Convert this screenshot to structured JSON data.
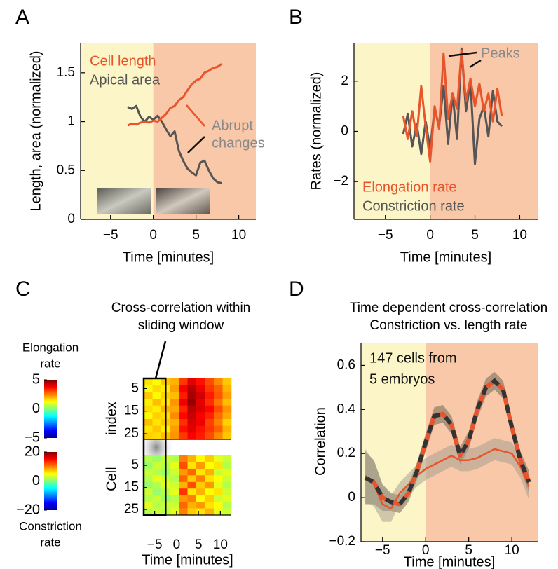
{
  "chart_data": [
    {
      "type": "line",
      "panel": "A",
      "xlabel": "Time [minutes]",
      "ylabel": "Length, area (normalized)",
      "xlim": [
        -8.5,
        12
      ],
      "ylim": [
        0,
        1.8
      ],
      "xticks": [
        {
          "value": -5,
          "label": "−5"
        },
        0,
        5,
        10
      ],
      "yticks": [
        0,
        0.5,
        1,
        1.5
      ],
      "shading": [
        {
          "from": -8.5,
          "to": 0,
          "color": "#fcf5c8"
        },
        {
          "from": 0,
          "to": 12,
          "color": "#f8c8a8"
        }
      ],
      "x": [
        -3,
        -2.5,
        -2,
        -1.5,
        -1,
        -0.5,
        0,
        0.5,
        1,
        1.5,
        2,
        2.5,
        3,
        3.5,
        4,
        4.5,
        5,
        5.5,
        6,
        6.5,
        7,
        7.5,
        8
      ],
      "series": [
        {
          "name": "Cell length",
          "color": "#e8542b",
          "values": [
            0.96,
            0.98,
            0.97,
            0.99,
            1.0,
            0.99,
            1.01,
            1.0,
            1.04,
            1.08,
            1.14,
            1.16,
            1.22,
            1.25,
            1.32,
            1.38,
            1.42,
            1.44,
            1.5,
            1.52,
            1.55,
            1.56,
            1.59
          ]
        },
        {
          "name": "Apical area",
          "color": "#555555",
          "values": [
            1.15,
            1.13,
            1.16,
            1.05,
            1.0,
            1.05,
            1.02,
            1.06,
            1.0,
            0.92,
            0.85,
            0.9,
            0.7,
            0.6,
            0.52,
            0.48,
            0.45,
            0.58,
            0.6,
            0.5,
            0.42,
            0.38,
            0.37
          ]
        }
      ],
      "annotation": [
        "Abrupt",
        "changes"
      ],
      "annotation_color": "#8a8a8a"
    },
    {
      "type": "line",
      "panel": "B",
      "xlabel": "Time [minutes]",
      "ylabel": "Rates (normalized)",
      "xlim": [
        -8.5,
        12
      ],
      "ylim": [
        -3.5,
        3.5
      ],
      "xticks": [
        {
          "value": -5,
          "label": "−5"
        },
        0,
        5,
        10
      ],
      "yticks": [
        {
          "value": -2,
          "label": "−2"
        },
        0,
        2
      ],
      "shading": [
        {
          "from": -8.5,
          "to": 0,
          "color": "#fcf5c8"
        },
        {
          "from": 0,
          "to": 12,
          "color": "#f8c8a8"
        }
      ],
      "x": [
        -3,
        -2.5,
        -2,
        -1.5,
        -1,
        -0.5,
        0,
        0.5,
        1,
        1.5,
        2,
        2.5,
        3,
        3.5,
        4,
        4.5,
        5,
        5.5,
        6,
        6.5,
        7,
        7.5,
        8
      ],
      "series": [
        {
          "name": "Elongation rate",
          "color": "#e8542b",
          "values": [
            0.6,
            -0.3,
            0.8,
            -0.2,
            1.8,
            0.2,
            -1.2,
            1.0,
            0.1,
            3.1,
            0.5,
            1.5,
            0.9,
            3.2,
            1.2,
            2.1,
            1.0,
            1.9,
            0.8,
            1.5,
            0.4,
            1.7,
            0.6
          ]
        },
        {
          "name": "Constriction rate",
          "color": "#555555",
          "values": [
            -0.1,
            0.7,
            -0.6,
            0.3,
            -0.9,
            0.4,
            -0.7,
            0.9,
            0.2,
            1.8,
            -0.5,
            1.5,
            -0.3,
            3.3,
            0.8,
            2.0,
            -1.3,
            0.5,
            1.0,
            -0.2,
            1.6,
            0.4,
            0.2
          ]
        }
      ],
      "annotation": [
        "Peaks"
      ],
      "annotation_color": "#8a8a8a"
    },
    {
      "type": "heatmap",
      "panel": "C",
      "title": [
        "Cross-correlation within",
        "sliding window"
      ],
      "xlabel": "Time [minutes]",
      "ylabel": "Cell index",
      "xlim": [
        -7.5,
        12.5
      ],
      "xticks": [
        {
          "value": -5,
          "label": "−5"
        },
        0,
        5,
        10
      ],
      "ylim": [
        0.5,
        27.5
      ],
      "yticks": [
        5,
        15,
        25
      ],
      "yreverse": true,
      "window": [
        -7.5,
        -2.5
      ],
      "x": [
        -6.5,
        -4.5,
        -2.5,
        -0.5,
        1.5,
        3.5,
        5.5,
        7.5,
        9.5,
        11.5
      ],
      "y": [
        2,
        5,
        8,
        11,
        14,
        17,
        20,
        23,
        26
      ],
      "heatmaps": [
        {
          "colorbar_label": [
            "Elongation",
            "rate"
          ],
          "zlim": [
            -5,
            5
          ],
          "zticks": [
            {
              "value": -5,
              "label": "−5"
            },
            0,
            5
          ],
          "z": [
            [
              1.5,
              1.2,
              1.8,
              2.0,
              3.2,
              4.0,
              3.6,
              3.0,
              2.4,
              1.8
            ],
            [
              1.2,
              1.6,
              1.4,
              2.2,
              3.8,
              4.5,
              3.9,
              3.2,
              2.8,
              2.0
            ],
            [
              1.8,
              1.3,
              1.7,
              1.9,
              3.5,
              4.6,
              4.2,
              3.5,
              2.9,
              2.2
            ],
            [
              1.4,
              1.9,
              1.5,
              2.3,
              3.9,
              4.8,
              4.0,
              3.3,
              2.6,
              1.9
            ],
            [
              1.6,
              1.4,
              2.0,
              2.1,
              3.4,
              4.4,
              4.1,
              3.7,
              3.0,
              2.3
            ],
            [
              1.3,
              1.7,
              1.6,
              2.4,
              3.7,
              4.3,
              3.8,
              3.4,
              2.7,
              2.1
            ],
            [
              1.9,
              1.5,
              1.8,
              2.0,
              3.3,
              4.1,
              3.9,
              3.1,
              2.5,
              1.7
            ],
            [
              1.5,
              1.8,
              1.4,
              2.2,
              3.6,
              4.0,
              3.6,
              3.2,
              2.8,
              2.0
            ],
            [
              1.7,
              1.6,
              1.9,
              2.3,
              3.2,
              3.8,
              3.5,
              3.0,
              2.4,
              1.8
            ]
          ]
        },
        {
          "colorbar_label": [
            "Constriction",
            "rate"
          ],
          "zlim": [
            -20,
            20
          ],
          "zticks": [
            {
              "value": -20,
              "label": "−20"
            },
            0,
            20
          ],
          "z": [
            [
              2,
              1,
              3,
              2,
              10,
              8,
              5,
              7,
              4,
              3
            ],
            [
              1,
              3,
              2,
              4,
              12,
              6,
              9,
              5,
              6,
              2
            ],
            [
              3,
              2,
              1,
              3,
              9,
              11,
              6,
              8,
              3,
              4
            ],
            [
              2,
              4,
              3,
              2,
              11,
              7,
              10,
              6,
              5,
              3
            ],
            [
              1,
              2,
              4,
              3,
              8,
              12,
              7,
              9,
              4,
              2
            ],
            [
              3,
              1,
              2,
              4,
              13,
              6,
              8,
              5,
              6,
              3
            ],
            [
              2,
              3,
              1,
              2,
              9,
              10,
              5,
              7,
              3,
              4
            ],
            [
              4,
              2,
              3,
              3,
              11,
              8,
              9,
              6,
              5,
              2
            ],
            [
              2,
              3,
              2,
              4,
              10,
              7,
              6,
              8,
              4,
              3
            ]
          ]
        }
      ]
    },
    {
      "type": "line",
      "panel": "D",
      "title": [
        "Time dependent cross-correlation",
        "Constriction vs. length rate"
      ],
      "xlabel": "Time [minutes]",
      "ylabel": "Correlation",
      "xlim": [
        -7.5,
        13
      ],
      "ylim": [
        -0.2,
        0.7
      ],
      "xticks": [
        {
          "value": -5,
          "label": "−5"
        },
        0,
        5,
        10
      ],
      "yticks": [
        {
          "value": -0.2,
          "label": "−0.2"
        },
        0,
        0.2,
        0.4,
        0.6
      ],
      "shading": [
        {
          "from": -7.5,
          "to": 0,
          "color": "#fcf5c8"
        },
        {
          "from": 0,
          "to": 13,
          "color": "#f8c8a8"
        }
      ],
      "x": [
        -7,
        -6,
        -5,
        -4,
        -3,
        -2,
        -1,
        0,
        1,
        2,
        3,
        4,
        5,
        6,
        7,
        8,
        9,
        10,
        11,
        12
      ],
      "series": [
        {
          "color": "#e8542b",
          "dash_color": "#333333",
          "band_color": "#6f6657",
          "style": "dashed",
          "values": [
            0.09,
            0.07,
            0.0,
            -0.02,
            -0.03,
            0.02,
            0.12,
            0.25,
            0.37,
            0.38,
            0.33,
            0.19,
            0.26,
            0.4,
            0.5,
            0.53,
            0.49,
            0.32,
            0.17,
            0.07
          ],
          "error": [
            0.12,
            0.1,
            0.06,
            0.04,
            0.04,
            0.04,
            0.04,
            0.04,
            0.04,
            0.04,
            0.04,
            0.04,
            0.04,
            0.04,
            0.04,
            0.04,
            0.04,
            0.04,
            0.04,
            0.05
          ]
        },
        {
          "color": "#e8542b",
          "band_color": "#a9a090",
          "style": "solid",
          "values": [
            0.1,
            0.06,
            -0.03,
            -0.05,
            0.02,
            0.06,
            0.1,
            0.13,
            0.15,
            0.17,
            0.19,
            0.17,
            0.17,
            0.18,
            0.2,
            0.22,
            0.21,
            0.2,
            0.14,
            0.05
          ],
          "error": [
            0.12,
            0.1,
            0.08,
            0.06,
            0.05,
            0.05,
            0.05,
            0.05,
            0.05,
            0.05,
            0.05,
            0.05,
            0.05,
            0.05,
            0.05,
            0.05,
            0.05,
            0.05,
            0.05,
            0.06
          ]
        }
      ],
      "annotation": [
        "147 cells from",
        "5 embryos"
      ],
      "annotation_color": "#111111"
    }
  ]
}
